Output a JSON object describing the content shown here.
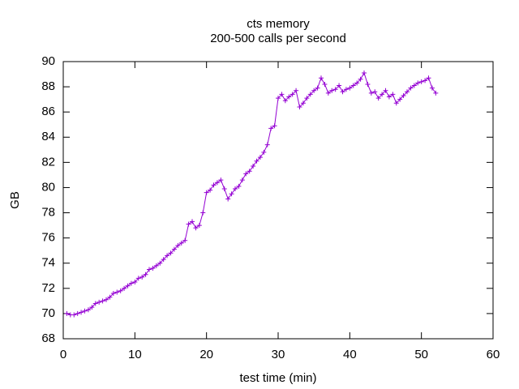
{
  "chart_data": {
    "type": "line",
    "title": "cts memory",
    "subtitle": "200-500 calls per second",
    "x_label": "test time (min)",
    "y_label": "GB",
    "color": "#9400d3",
    "x": [
      0.5,
      1,
      1.5,
      2,
      2.5,
      3,
      3.5,
      4,
      4.5,
      5,
      5.5,
      6,
      6.5,
      7,
      7.5,
      8,
      8.5,
      9,
      9.5,
      10,
      10.5,
      11,
      11.5,
      12,
      12.5,
      13,
      13.5,
      14,
      14.5,
      15,
      15.5,
      16,
      16.5,
      17,
      17.5,
      18,
      18.5,
      19,
      19.5,
      20,
      20.5,
      21,
      21.5,
      22,
      22.5,
      23,
      23.5,
      24,
      24.5,
      25,
      25.5,
      26,
      26.5,
      27,
      27.5,
      28,
      28.5,
      29,
      29.5,
      30,
      30.5,
      31,
      31.5,
      32,
      32.5,
      33,
      33.5,
      34,
      34.5,
      35,
      35.5,
      36,
      36.5,
      37,
      37.5,
      38,
      38.5,
      39,
      39.5,
      40,
      40.5,
      41,
      41.5,
      42,
      42.5,
      43,
      43.5,
      44,
      44.5,
      45,
      45.5,
      46,
      46.5,
      47,
      47.5,
      48,
      48.5,
      49,
      49.5,
      50,
      50.5,
      51,
      51.5,
      52
    ],
    "values": [
      70.0,
      69.9,
      69.9,
      70.0,
      70.1,
      70.2,
      70.3,
      70.5,
      70.8,
      70.9,
      71.0,
      71.1,
      71.3,
      71.6,
      71.7,
      71.8,
      72.0,
      72.2,
      72.4,
      72.5,
      72.8,
      72.9,
      73.1,
      73.5,
      73.6,
      73.8,
      74.0,
      74.3,
      74.6,
      74.8,
      75.1,
      75.4,
      75.6,
      75.8,
      77.1,
      77.3,
      76.8,
      77.0,
      78.0,
      79.6,
      79.8,
      80.2,
      80.4,
      80.6,
      79.9,
      79.1,
      79.5,
      79.9,
      80.1,
      80.6,
      81.1,
      81.3,
      81.7,
      82.1,
      82.4,
      82.8,
      83.4,
      84.7,
      84.9,
      87.1,
      87.4,
      86.9,
      87.2,
      87.4,
      87.7,
      86.4,
      86.7,
      87.1,
      87.4,
      87.7,
      87.9,
      88.7,
      88.2,
      87.5,
      87.7,
      87.8,
      88.1,
      87.6,
      87.8,
      87.9,
      88.1,
      88.3,
      88.6,
      89.1,
      88.2,
      87.5,
      87.6,
      87.1,
      87.4,
      87.7,
      87.2,
      87.4,
      86.7,
      87.0,
      87.3,
      87.6,
      87.9,
      88.1,
      88.3,
      88.4,
      88.5,
      88.7,
      87.9,
      87.5
    ],
    "xlim": [
      0,
      60
    ],
    "xticks": [
      0,
      10,
      20,
      30,
      40,
      50,
      60
    ],
    "ylim": [
      68,
      90
    ],
    "yticks": [
      68,
      70,
      72,
      74,
      76,
      78,
      80,
      82,
      84,
      86,
      88,
      90
    ]
  }
}
